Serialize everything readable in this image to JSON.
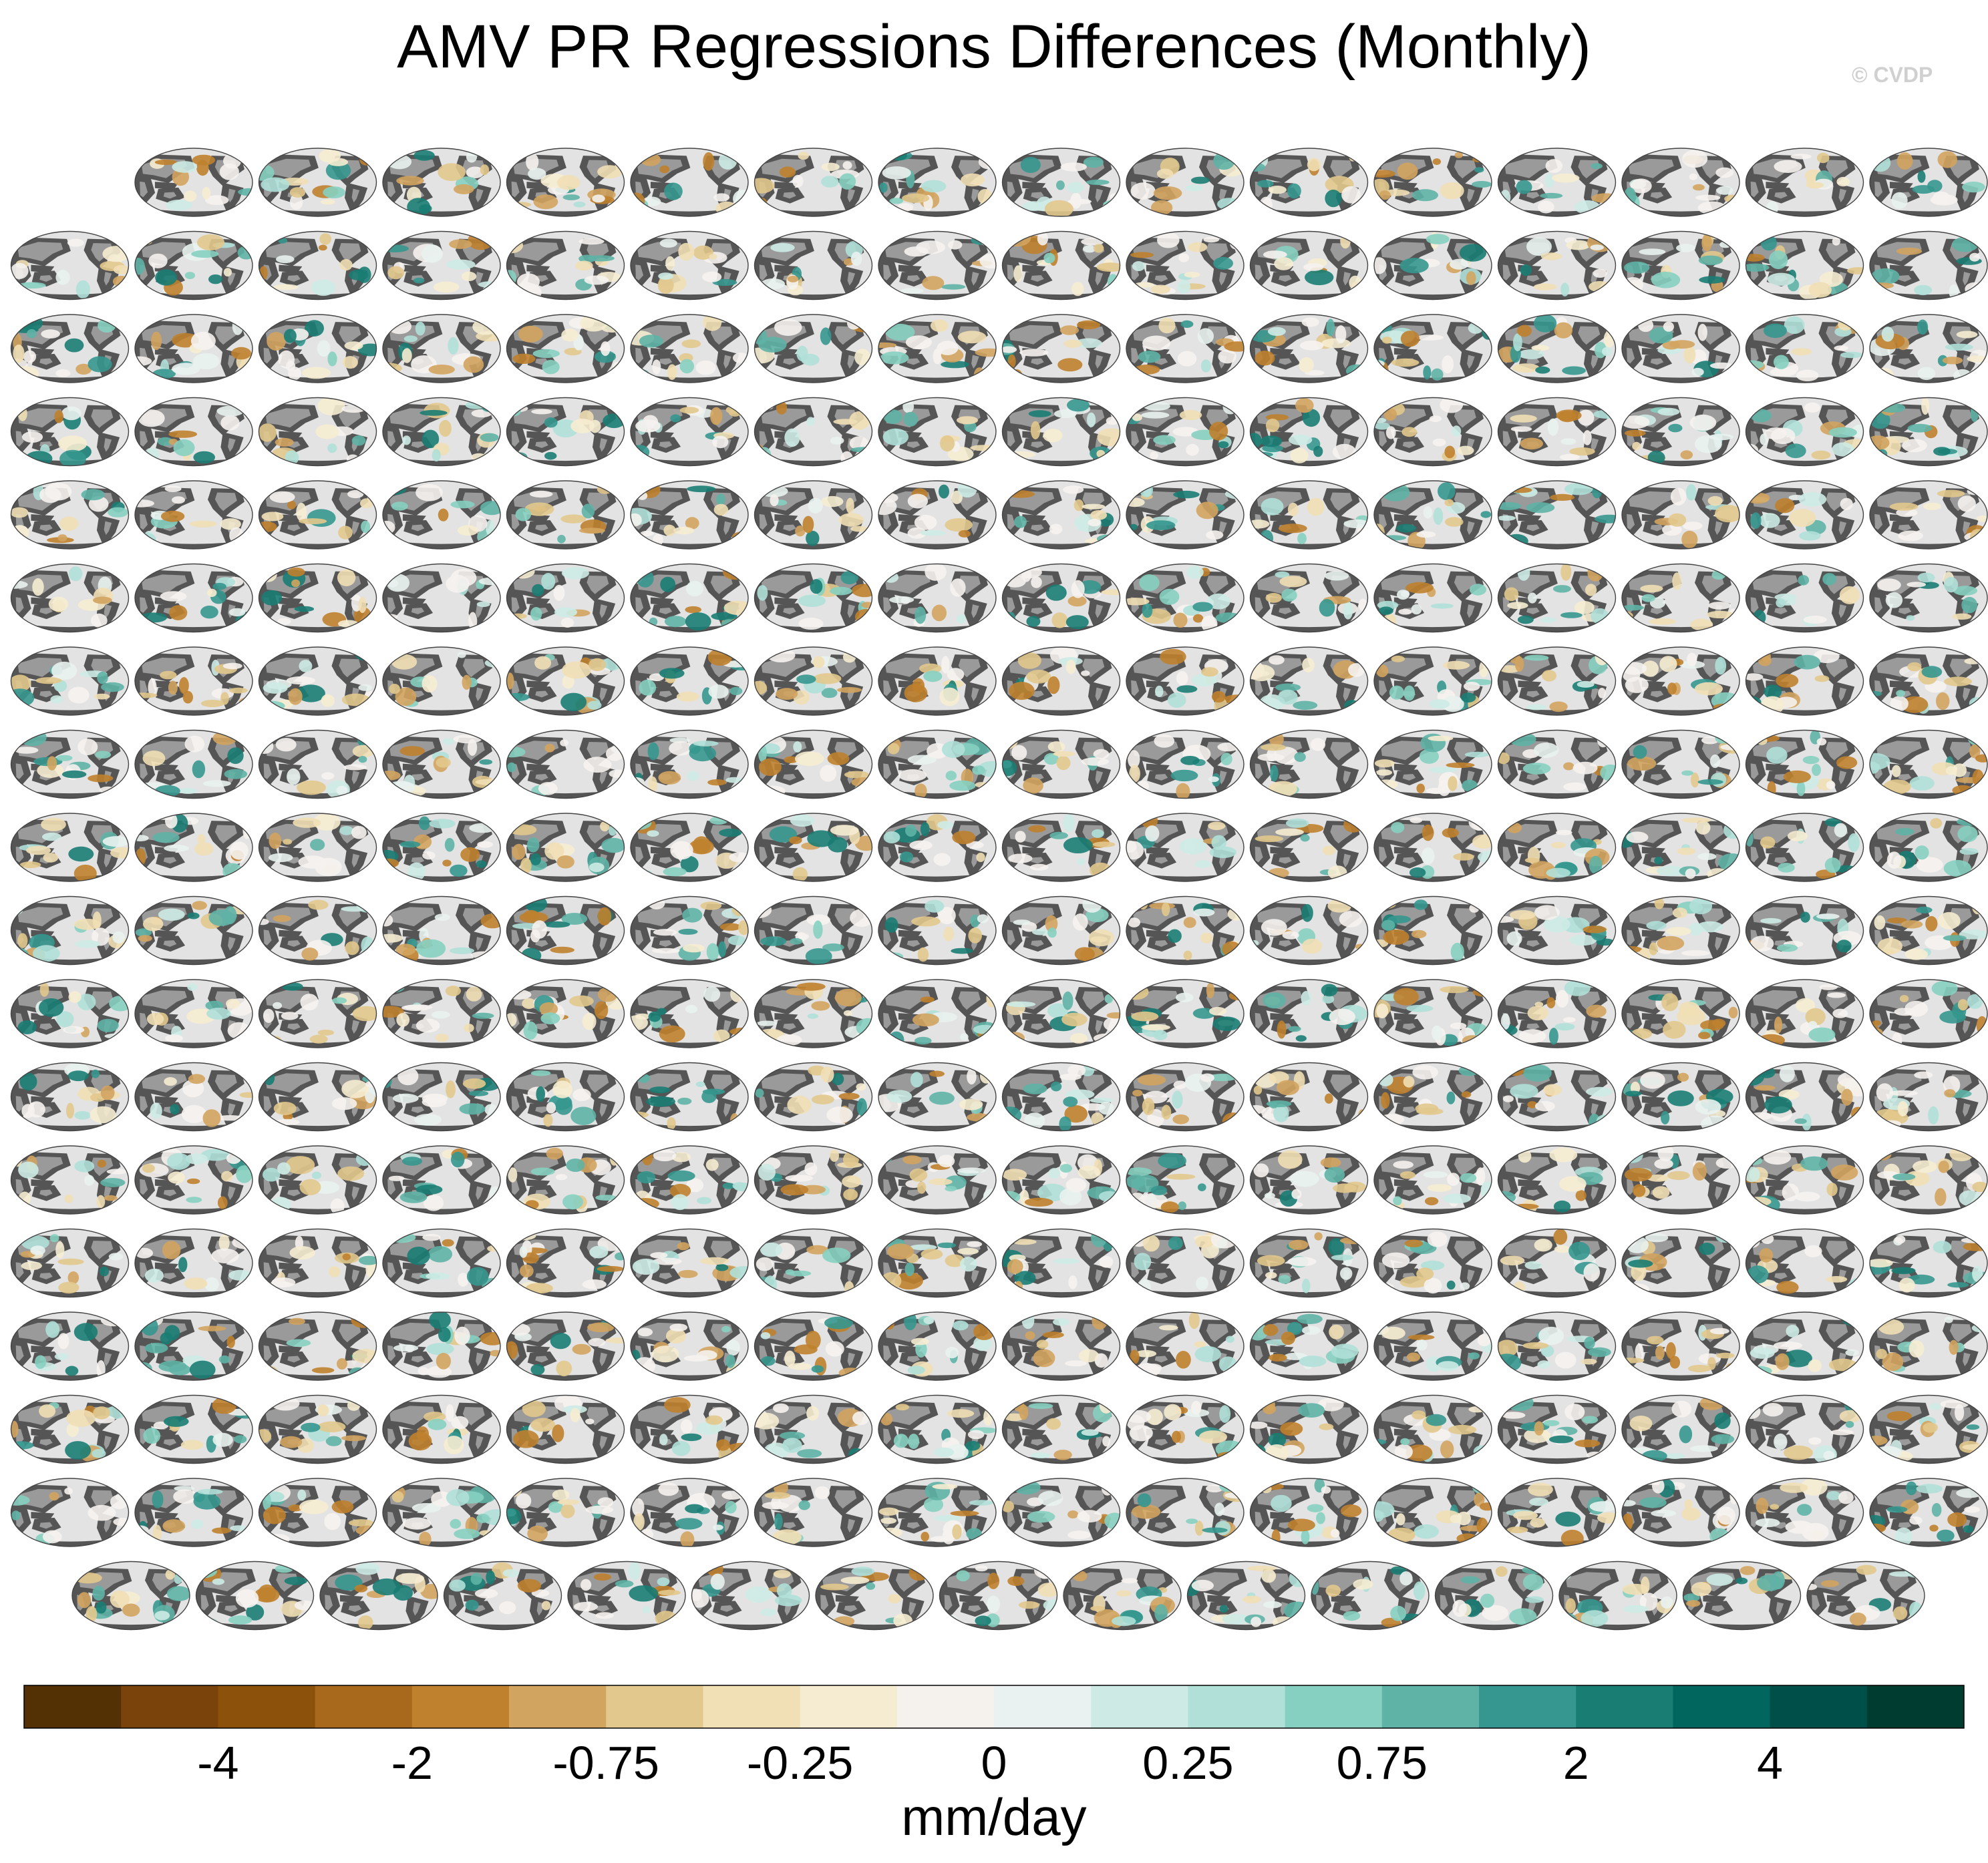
{
  "title": "AMV PR Regressions Differences (Monthly)",
  "copyright": "© CVDP",
  "colorbar": {
    "units": "mm/day",
    "tick_labels": [
      "-4",
      "-2",
      "-0.75",
      "-0.25",
      "0",
      "0.25",
      "0.75",
      "2",
      "4"
    ],
    "colors": [
      "#543005",
      "#7a430b",
      "#8c510a",
      "#a9691c",
      "#bf812d",
      "#d1a45f",
      "#e2c88c",
      "#f1dfb5",
      "#f6ecd1",
      "#f5f2ee",
      "#e9f2f0",
      "#cdebe4",
      "#b0e0d8",
      "#86d0c1",
      "#5fb3a6",
      "#35978f",
      "#1a7d73",
      "#01665e",
      "#00504a",
      "#003c30"
    ]
  },
  "panel_grid": {
    "rows": 18,
    "cols": 16,
    "first_row_blank_cols": 1,
    "last_row_cols": 15
  },
  "colors": {
    "ocean": "#e3e3e3",
    "land": "#9a9a9a",
    "label_access": "#1f6f9a",
    "label_canesm": "#9a9a9a",
    "label_cesm": "#b44a1f",
    "label_cesm2": "#8f7fe0"
  }
}
